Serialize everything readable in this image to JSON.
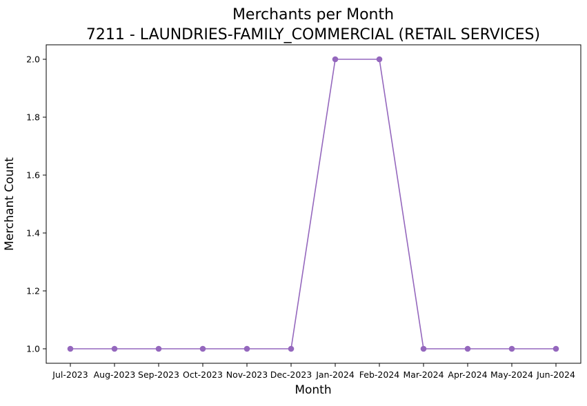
{
  "chart_data": {
    "type": "line",
    "title": "Merchants per Month",
    "subtitle": "7211 - LAUNDRIES-FAMILY_COMMERCIAL (RETAIL SERVICES)",
    "xlabel": "Month",
    "ylabel": "Merchant Count",
    "categories": [
      "Jul-2023",
      "Aug-2023",
      "Sep-2023",
      "Oct-2023",
      "Nov-2023",
      "Dec-2023",
      "Jan-2024",
      "Feb-2024",
      "Mar-2024",
      "Apr-2024",
      "May-2024",
      "Jun-2024"
    ],
    "series": [
      {
        "values": [
          1,
          1,
          1,
          1,
          1,
          1,
          2,
          2,
          1,
          1,
          1,
          1
        ],
        "color": "#9467bd",
        "marker": "circle"
      }
    ],
    "ylim": [
      0.95,
      2.05
    ],
    "yticks": [
      "1.0",
      "1.2",
      "1.4",
      "1.6",
      "1.8",
      "2.0"
    ],
    "ytick_values": [
      1.0,
      1.2,
      1.4,
      1.6,
      1.8,
      2.0
    ],
    "grid": false,
    "legend": "none"
  }
}
